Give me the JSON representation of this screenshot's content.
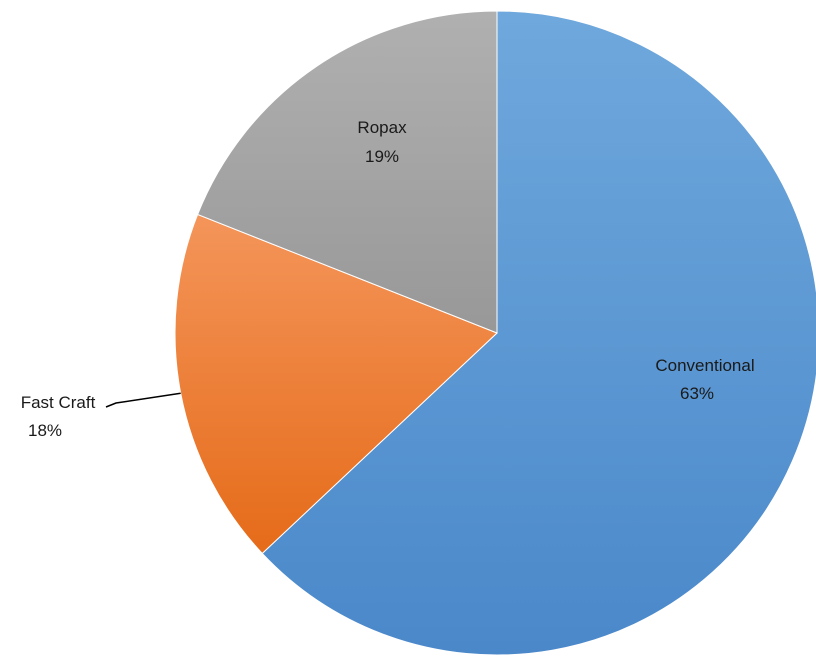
{
  "chart_data": {
    "type": "pie",
    "title": "",
    "series": [
      {
        "slices": [
          {
            "label": "Conventional",
            "percent_label": "63%",
            "value": 63,
            "color": "#5B9BD5"
          },
          {
            "label": "Fast Craft",
            "percent_label": "18%",
            "value": 18,
            "color": "#ED7D31"
          },
          {
            "label": "Ropax",
            "percent_label": "19%",
            "value": 19,
            "color": "#A5A5A5"
          }
        ]
      }
    ],
    "legend": "none",
    "data_labels": "category-name-and-percent"
  }
}
